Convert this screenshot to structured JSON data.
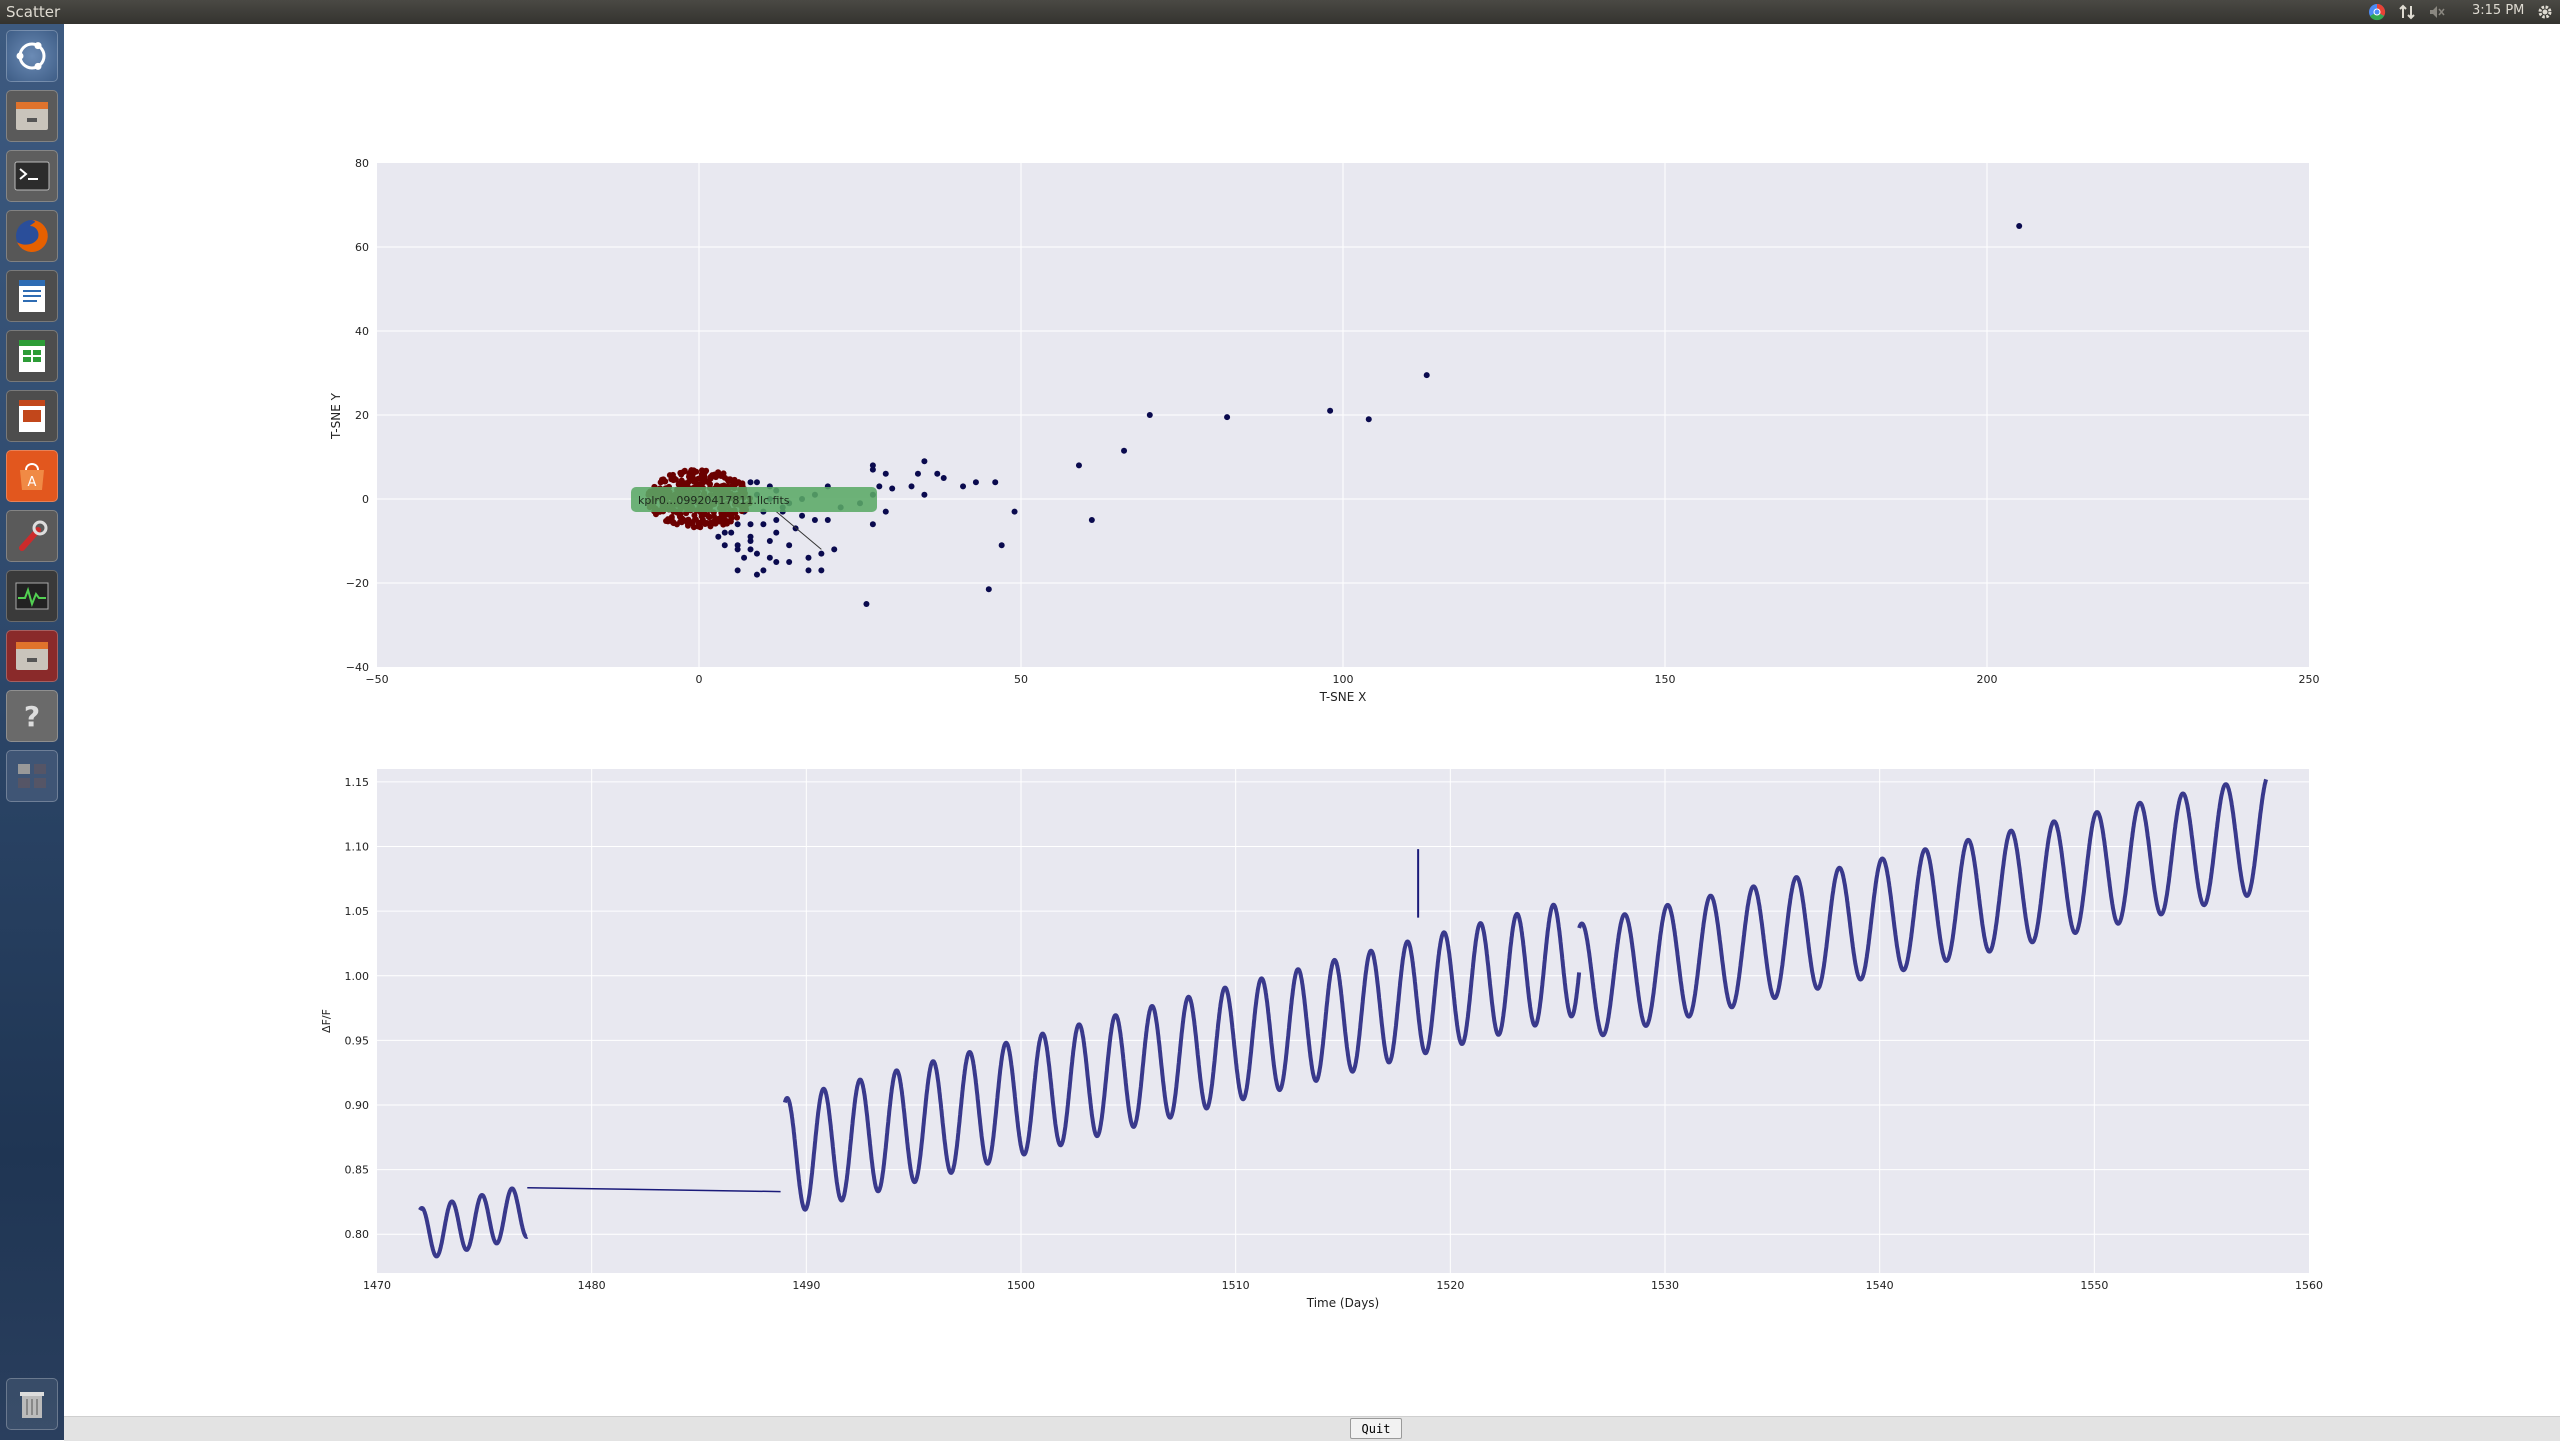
{
  "window": {
    "title": "Scatter"
  },
  "tray": {
    "time": "3:15 PM"
  },
  "launcher": {
    "items": [
      "dash",
      "files",
      "terminal",
      "firefox",
      "writer",
      "calc",
      "impress",
      "software-center",
      "settings",
      "system-monitor",
      "files-2",
      "help",
      "workspaces",
      "trash"
    ]
  },
  "buttons": {
    "quit": "Quit"
  },
  "annotation": {
    "text": "kplr0...09920417811.llc.fits"
  },
  "colors": {
    "scatter_points": "#0a0a4e",
    "highlight_cluster": "#6b0000",
    "line_series": "#1a1a7a",
    "annotation_bg": "#5aa865",
    "plot_bg": "#e8e8f0",
    "grid": "#ffffff"
  },
  "chart_data": [
    {
      "type": "scatter",
      "xlabel": "T-SNE X",
      "ylabel": "T-SNE Y",
      "xlim": [
        -50,
        250
      ],
      "ylim": [
        -40,
        80
      ],
      "xticks": [
        "−50",
        "0",
        "50",
        "100",
        "150",
        "200",
        "250"
      ],
      "yticks": [
        "−40",
        "−20",
        "0",
        "20",
        "40",
        "60",
        "80"
      ],
      "grid": true,
      "points": [
        [
          205,
          65
        ],
        [
          113,
          29.5
        ],
        [
          98,
          21
        ],
        [
          104,
          19
        ],
        [
          82,
          19.5
        ],
        [
          70,
          20
        ],
        [
          66,
          11.5
        ],
        [
          59,
          8
        ],
        [
          61,
          -5
        ],
        [
          49,
          -3
        ],
        [
          47,
          -11
        ],
        [
          45,
          -21.5
        ],
        [
          46,
          4
        ],
        [
          43,
          4
        ],
        [
          41,
          3
        ],
        [
          38,
          5
        ],
        [
          37,
          6
        ],
        [
          35,
          9
        ],
        [
          34,
          6
        ],
        [
          35,
          1
        ],
        [
          33,
          3
        ],
        [
          30,
          2.5
        ],
        [
          29,
          6
        ],
        [
          28,
          3
        ],
        [
          27,
          8
        ],
        [
          27,
          7
        ],
        [
          27,
          1
        ],
        [
          26,
          -25
        ],
        [
          27,
          -6
        ],
        [
          29,
          -3
        ],
        [
          21,
          -12
        ],
        [
          19,
          -17
        ],
        [
          17,
          -17
        ],
        [
          17,
          -14
        ],
        [
          15,
          -7
        ],
        [
          14,
          -15
        ],
        [
          14,
          -11
        ],
        [
          12,
          -15
        ],
        [
          11,
          -10
        ],
        [
          11,
          -14
        ],
        [
          9,
          -13
        ],
        [
          9,
          -18
        ],
        [
          8,
          -10
        ],
        [
          8,
          -12
        ],
        [
          8,
          -9
        ],
        [
          7,
          -14
        ],
        [
          6,
          -11
        ],
        [
          6,
          -12
        ],
        [
          5,
          -8
        ],
        [
          4,
          -8
        ],
        [
          3,
          -9
        ],
        [
          4,
          -11
        ],
        [
          6,
          -6
        ],
        [
          8,
          -6
        ],
        [
          10,
          -6
        ],
        [
          12,
          -5
        ],
        [
          13,
          -3
        ],
        [
          14,
          -1
        ],
        [
          16,
          0
        ],
        [
          18,
          1
        ],
        [
          20,
          3
        ],
        [
          12,
          2
        ],
        [
          11,
          3
        ],
        [
          9,
          4
        ],
        [
          8,
          4
        ],
        [
          13,
          -2
        ],
        [
          16,
          -4
        ],
        [
          18,
          -5
        ],
        [
          22,
          -2
        ],
        [
          25,
          -1
        ],
        [
          20,
          -5
        ],
        [
          19,
          -13
        ],
        [
          10,
          -3
        ],
        [
          7,
          -3
        ],
        [
          7,
          2
        ],
        [
          9,
          1
        ],
        [
          11,
          0
        ],
        [
          12,
          -8
        ],
        [
          10,
          -17
        ],
        [
          6,
          -17
        ]
      ],
      "highlight_cluster": {
        "center": [
          0,
          0
        ],
        "radius_x": 8,
        "radius_y": 7
      }
    },
    {
      "type": "line",
      "xlabel": "Time (Days)",
      "ylabel": "ΔF/F",
      "xlim": [
        1470,
        1560
      ],
      "ylim": [
        0.77,
        1.16
      ],
      "xticks": [
        "1470",
        "1480",
        "1490",
        "1500",
        "1510",
        "1520",
        "1530",
        "1540",
        "1550",
        "1560"
      ],
      "yticks": [
        "0.80",
        "0.85",
        "0.90",
        "0.95",
        "1.00",
        "1.05",
        "1.10",
        "1.15"
      ],
      "grid": true,
      "series": [
        {
          "segments": [
            {
              "x_start": 1472.0,
              "x_end": 1477.0,
              "base_start": 0.8,
              "base_end": 0.818,
              "amplitude": 0.02,
              "period": 1.4
            },
            {
              "x_start": 1489.0,
              "x_end": 1526.0,
              "base_start": 0.86,
              "base_end": 1.015,
              "amplitude": 0.045,
              "period": 1.7
            },
            {
              "x_start": 1526.0,
              "x_end": 1558.0,
              "base_start": 0.995,
              "base_end": 1.11,
              "amplitude": 0.045,
              "period": 2.0
            }
          ],
          "gap_line": [
            [
              1477.0,
              0.836
            ],
            [
              1488.8,
              0.833
            ]
          ],
          "spike": [
            [
              1518.5,
              1.045
            ],
            [
              1518.5,
              1.098
            ]
          ]
        }
      ]
    }
  ]
}
